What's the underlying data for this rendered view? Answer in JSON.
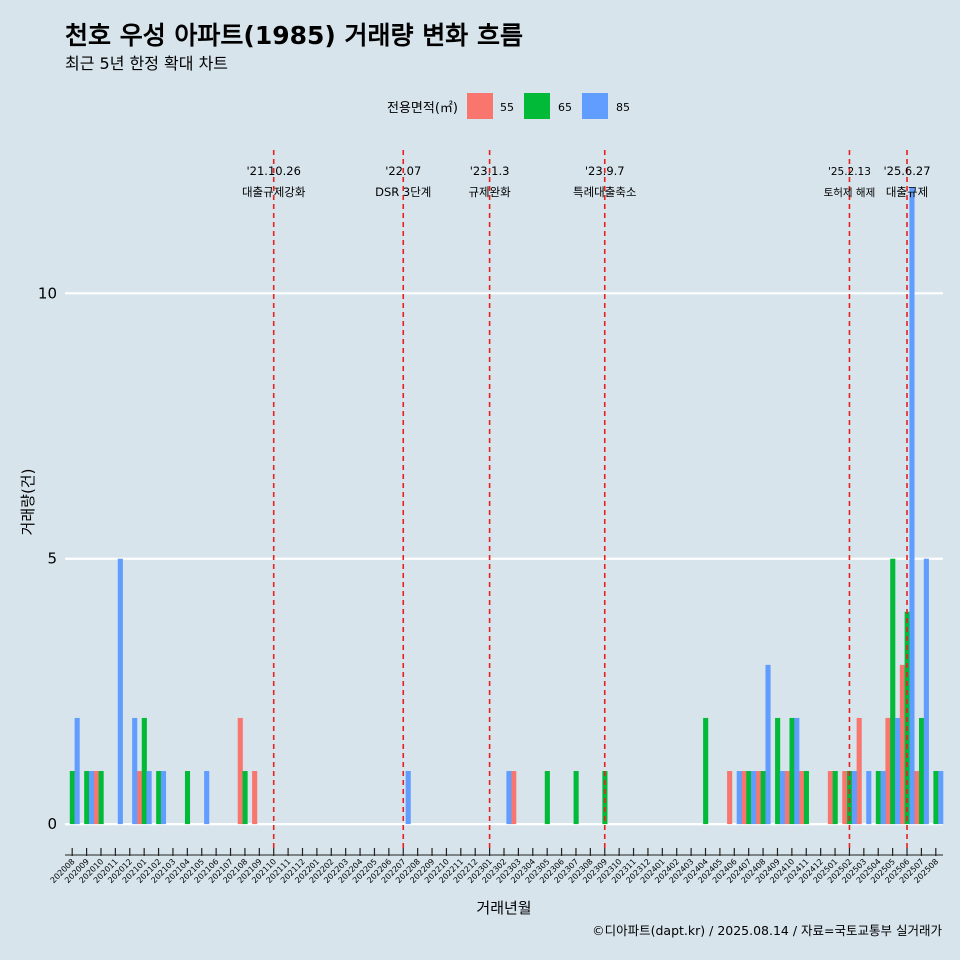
{
  "title": "천호 우성 아파트(1985) 거래량 변화 흐름",
  "subtitle": "최근 5년 한정 확대 차트",
  "caption": "©디아파트(dapt.kr) / 2025.08.14 / 자료=국토교통부 실거래가",
  "colors": {
    "background": "#d7e4ec",
    "grid": "#ffffff",
    "event_line": "#e8201e",
    "s55": "#f8766d",
    "s65": "#00ba38",
    "s85": "#619cff"
  },
  "chart_data": {
    "type": "bar",
    "title": "천호 우성 아파트(1985) 거래량 변화 흐름",
    "subtitle": "최근 5년 한정 확대 차트",
    "xlabel": "거래년월",
    "ylabel": "거래량(건)",
    "ylim": [
      -0.45,
      12.7
    ],
    "yticks": [
      0,
      5,
      10
    ],
    "legend_title": "전용면적(㎡)",
    "legend_position": "top",
    "grid": "horizontal major only",
    "categories": [
      "202008",
      "202009",
      "202010",
      "202011",
      "202012",
      "202101",
      "202102",
      "202103",
      "202104",
      "202105",
      "202106",
      "202107",
      "202108",
      "202109",
      "202110",
      "202111",
      "202112",
      "202201",
      "202202",
      "202203",
      "202204",
      "202205",
      "202206",
      "202207",
      "202208",
      "202209",
      "202210",
      "202211",
      "202212",
      "202301",
      "202302",
      "202303",
      "202304",
      "202305",
      "202306",
      "202307",
      "202308",
      "202309",
      "202310",
      "202311",
      "202312",
      "202401",
      "202402",
      "202403",
      "202404",
      "202405",
      "202406",
      "202407",
      "202408",
      "202409",
      "202410",
      "202411",
      "202412",
      "202501",
      "202502",
      "202503",
      "202504",
      "202505",
      "202506",
      "202507",
      "202508"
    ],
    "series": [
      {
        "name": "55",
        "color": "#f8766d",
        "values": [
          0,
          0,
          1,
          0,
          0,
          1,
          0,
          0,
          0,
          0,
          0,
          0,
          2,
          1,
          0,
          0,
          0,
          0,
          0,
          0,
          0,
          0,
          0,
          0,
          0,
          0,
          0,
          0,
          0,
          0,
          0,
          1,
          0,
          0,
          0,
          0,
          0,
          0,
          0,
          0,
          0,
          0,
          0,
          0,
          0,
          0,
          1,
          1,
          1,
          0,
          1,
          1,
          0,
          1,
          1,
          2,
          0,
          2,
          3,
          1,
          0
        ]
      },
      {
        "name": "65",
        "color": "#00ba38",
        "values": [
          1,
          1,
          1,
          0,
          0,
          2,
          1,
          0,
          1,
          0,
          0,
          0,
          1,
          0,
          0,
          0,
          0,
          0,
          0,
          0,
          0,
          0,
          0,
          0,
          0,
          0,
          0,
          0,
          0,
          0,
          0,
          0,
          0,
          1,
          0,
          1,
          0,
          1,
          0,
          0,
          0,
          0,
          0,
          0,
          2,
          0,
          0,
          1,
          1,
          2,
          2,
          1,
          0,
          1,
          1,
          0,
          1,
          5,
          4,
          2,
          1
        ]
      },
      {
        "name": "85",
        "color": "#619cff",
        "values": [
          2,
          1,
          0,
          5,
          2,
          1,
          1,
          0,
          0,
          1,
          0,
          0,
          0,
          0,
          0,
          0,
          0,
          0,
          0,
          0,
          0,
          0,
          0,
          1,
          0,
          0,
          0,
          0,
          0,
          0,
          1,
          0,
          0,
          0,
          0,
          0,
          0,
          0,
          0,
          0,
          0,
          0,
          0,
          0,
          0,
          0,
          1,
          1,
          3,
          1,
          2,
          0,
          0,
          0,
          1,
          1,
          1,
          2,
          12,
          5,
          1
        ]
      }
    ],
    "events": [
      {
        "date_label": "'21.10.26",
        "desc": "대출규제강화",
        "x": "202110"
      },
      {
        "date_label": "'22.07",
        "desc": "DSR 3단계",
        "x": "202207"
      },
      {
        "date_label": "'23.1.3",
        "desc": "규제완화",
        "x": "202301"
      },
      {
        "date_label": "'23.9.7",
        "desc": "특례대출축소",
        "x": "202309"
      },
      {
        "date_label": "'25.2.13",
        "desc": "토허제 해제",
        "x": "202502"
      },
      {
        "date_label": "'25.6.27",
        "desc": "대출규제",
        "x": "202506"
      }
    ]
  }
}
